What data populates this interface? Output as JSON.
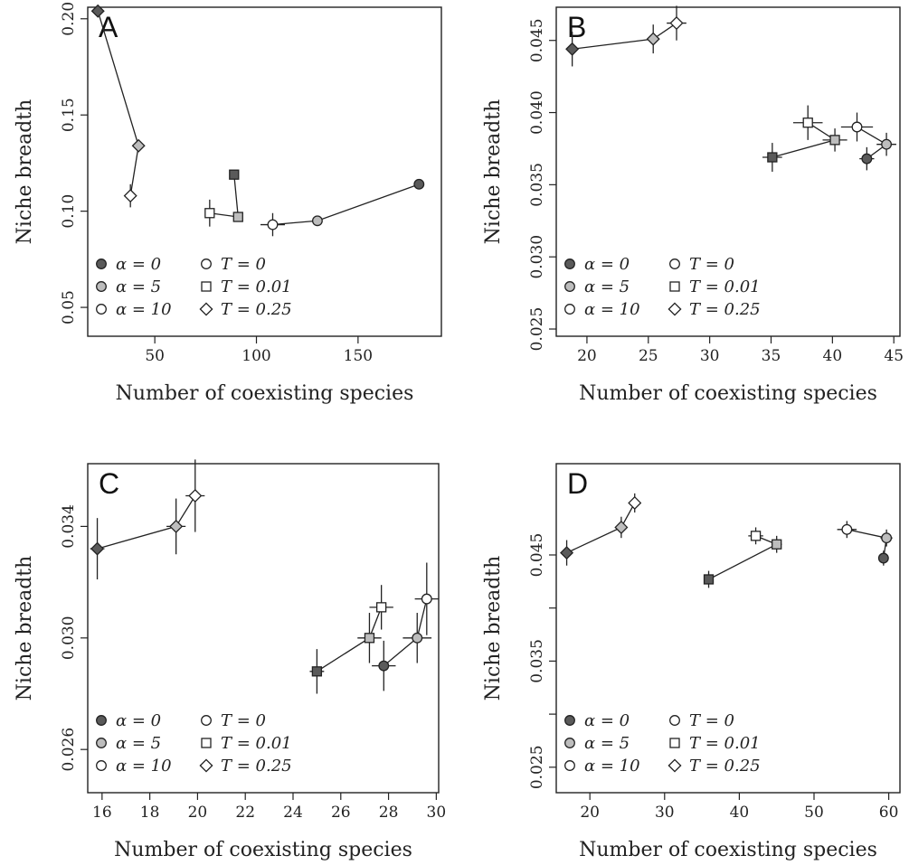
{
  "legend": {
    "fill_items": [
      {
        "label": "α = 0",
        "fill": "#5a5a5a"
      },
      {
        "label": "α = 5",
        "fill": "#bdbdbd"
      },
      {
        "label": "α = 10",
        "fill": "#ffffff"
      }
    ],
    "shape_items": [
      {
        "label": "T = 0",
        "shape": "circle"
      },
      {
        "label": "T = 0.01",
        "shape": "square"
      },
      {
        "label": "T = 0.25",
        "shape": "diamond"
      }
    ]
  },
  "colors": {
    "alpha0": "#5a5a5a",
    "alpha5": "#bdbdbd",
    "alpha10": "#ffffff",
    "stroke": "#222222"
  },
  "chart_data": [
    {
      "panel": "A",
      "type": "scatter",
      "xlabel": "Number of coexisting species",
      "ylabel": "Niche breadth",
      "xlim": [
        17,
        191
      ],
      "ylim": [
        0.035,
        0.206
      ],
      "xticks": [
        50,
        100,
        150
      ],
      "xtick_labels": [
        "50",
        "100",
        "150"
      ],
      "yticks": [
        0.05,
        0.1,
        0.15,
        0.2
      ],
      "ytick_labels": [
        "0.05",
        "0.10",
        "0.15",
        "0.20"
      ],
      "points": [
        {
          "T": "0",
          "alpha": 0,
          "x": 180,
          "y": 0.114,
          "xerr": 0,
          "yerr": 0
        },
        {
          "T": "0",
          "alpha": 5,
          "x": 130,
          "y": 0.095,
          "xerr": 0,
          "yerr": 0
        },
        {
          "T": "0",
          "alpha": 10,
          "x": 108,
          "y": 0.093,
          "xerr": 6,
          "yerr": 0.006
        },
        {
          "T": "0.01",
          "alpha": 0,
          "x": 89,
          "y": 0.119,
          "xerr": 0,
          "yerr": 0
        },
        {
          "T": "0.01",
          "alpha": 5,
          "x": 91,
          "y": 0.097,
          "xerr": 0,
          "yerr": 0
        },
        {
          "T": "0.01",
          "alpha": 10,
          "x": 77,
          "y": 0.099,
          "xerr": 0,
          "yerr": 0.007
        },
        {
          "T": "0.25",
          "alpha": 0,
          "x": 22,
          "y": 0.204,
          "xerr": 0,
          "yerr": 0
        },
        {
          "T": "0.25",
          "alpha": 5,
          "x": 42,
          "y": 0.134,
          "xerr": 0,
          "yerr": 0
        },
        {
          "T": "0.25",
          "alpha": 10,
          "x": 38,
          "y": 0.108,
          "xerr": 0,
          "yerr": 0.006
        }
      ]
    },
    {
      "panel": "B",
      "type": "scatter",
      "xlabel": "Number of coexisting species",
      "ylabel": "Niche breadth",
      "xlim": [
        17.5,
        45.5
      ],
      "ylim": [
        0.0245,
        0.0473
      ],
      "xticks": [
        20,
        25,
        30,
        35,
        40,
        45
      ],
      "xtick_labels": [
        "20",
        "25",
        "30",
        "35",
        "40",
        "45"
      ],
      "yticks": [
        0.025,
        0.03,
        0.035,
        0.04,
        0.045
      ],
      "ytick_labels": [
        "0.025",
        "0.030",
        "0.035",
        "0.040",
        "0.045"
      ],
      "points": [
        {
          "T": "0",
          "alpha": 0,
          "x": 42.8,
          "y": 0.0368,
          "xerr": 0.6,
          "yerr": 0.0008
        },
        {
          "T": "0",
          "alpha": 5,
          "x": 44.4,
          "y": 0.0378,
          "xerr": 0.8,
          "yerr": 0.0008
        },
        {
          "T": "0",
          "alpha": 10,
          "x": 42.0,
          "y": 0.039,
          "xerr": 1.3,
          "yerr": 0.001
        },
        {
          "T": "0.01",
          "alpha": 0,
          "x": 35.1,
          "y": 0.0369,
          "xerr": 0.8,
          "yerr": 0.001
        },
        {
          "T": "0.01",
          "alpha": 5,
          "x": 40.2,
          "y": 0.0381,
          "xerr": 1.0,
          "yerr": 0.0008
        },
        {
          "T": "0.01",
          "alpha": 10,
          "x": 38.0,
          "y": 0.0393,
          "xerr": 1.2,
          "yerr": 0.0012
        },
        {
          "T": "0.25",
          "alpha": 0,
          "x": 18.8,
          "y": 0.0444,
          "xerr": 0,
          "yerr": 0.0012
        },
        {
          "T": "0.25",
          "alpha": 5,
          "x": 25.4,
          "y": 0.0451,
          "xerr": 0.5,
          "yerr": 0.001
        },
        {
          "T": "0.25",
          "alpha": 10,
          "x": 27.3,
          "y": 0.0462,
          "xerr": 0.8,
          "yerr": 0.0012
        }
      ]
    },
    {
      "panel": "C",
      "type": "scatter",
      "xlabel": "Number of coexisting species",
      "ylabel": "Niche breadth",
      "xlim": [
        15.4,
        30.1
      ],
      "ylim": [
        0.02445,
        0.03625
      ],
      "xticks": [
        16,
        18,
        20,
        22,
        24,
        26,
        28,
        30
      ],
      "xtick_labels": [
        "16",
        "18",
        "20",
        "22",
        "24",
        "26",
        "28",
        "30"
      ],
      "yticks": [
        0.026,
        0.03,
        0.034
      ],
      "ytick_labels": [
        "0.026",
        "0.030",
        "0.034"
      ],
      "points": [
        {
          "T": "0",
          "alpha": 0,
          "x": 27.8,
          "y": 0.029,
          "xerr": 0.5,
          "yerr": 0.0009
        },
        {
          "T": "0",
          "alpha": 5,
          "x": 29.2,
          "y": 0.03,
          "xerr": 0.6,
          "yerr": 0.0009
        },
        {
          "T": "0",
          "alpha": 10,
          "x": 29.6,
          "y": 0.0314,
          "xerr": 0.5,
          "yerr": 0.0013
        },
        {
          "T": "0.01",
          "alpha": 0,
          "x": 25.0,
          "y": 0.0288,
          "xerr": 0.3,
          "yerr": 0.0008
        },
        {
          "T": "0.01",
          "alpha": 5,
          "x": 27.2,
          "y": 0.03,
          "xerr": 0.5,
          "yerr": 0.0009
        },
        {
          "T": "0.01",
          "alpha": 10,
          "x": 27.7,
          "y": 0.0311,
          "xerr": 0.5,
          "yerr": 0.0008
        },
        {
          "T": "0.25",
          "alpha": 0,
          "x": 15.8,
          "y": 0.0332,
          "xerr": 0.3,
          "yerr": 0.0011
        },
        {
          "T": "0.25",
          "alpha": 5,
          "x": 19.1,
          "y": 0.034,
          "xerr": 0.4,
          "yerr": 0.001
        },
        {
          "T": "0.25",
          "alpha": 10,
          "x": 19.9,
          "y": 0.0351,
          "xerr": 0.4,
          "yerr": 0.0013
        }
      ]
    },
    {
      "panel": "D",
      "type": "scatter",
      "xlabel": "Number of coexisting species",
      "ylabel": "Niche breadth",
      "xlim": [
        15.5,
        61.5
      ],
      "ylim": [
        0.0226,
        0.0536
      ],
      "xticks": [
        20,
        30,
        40,
        50,
        60
      ],
      "xtick_labels": [
        "20",
        "30",
        "40",
        "50",
        "60"
      ],
      "yticks": [
        0.025,
        0.03,
        0.035,
        0.04,
        0.045
      ],
      "ytick_labels": [
        "0.025",
        "",
        "0.035",
        "",
        "0.045"
      ],
      "points": [
        {
          "T": "0",
          "alpha": 0,
          "x": 59.3,
          "y": 0.0447,
          "xerr": 0,
          "yerr": 0.0007
        },
        {
          "T": "0",
          "alpha": 5,
          "x": 59.7,
          "y": 0.0466,
          "xerr": 0.8,
          "yerr": 0.0008
        },
        {
          "T": "0",
          "alpha": 10,
          "x": 54.4,
          "y": 0.0474,
          "xerr": 1.3,
          "yerr": 0.0008
        },
        {
          "T": "0.01",
          "alpha": 0,
          "x": 35.9,
          "y": 0.0427,
          "xerr": 0.5,
          "yerr": 0.0008
        },
        {
          "T": "0.01",
          "alpha": 5,
          "x": 45.0,
          "y": 0.046,
          "xerr": 0.7,
          "yerr": 0.0008
        },
        {
          "T": "0.01",
          "alpha": 10,
          "x": 42.2,
          "y": 0.0468,
          "xerr": 1.0,
          "yerr": 0.0008
        },
        {
          "T": "0.25",
          "alpha": 0,
          "x": 16.9,
          "y": 0.0452,
          "xerr": 0,
          "yerr": 0.0012
        },
        {
          "T": "0.25",
          "alpha": 5,
          "x": 24.2,
          "y": 0.0476,
          "xerr": 0,
          "yerr": 0.001
        },
        {
          "T": "0.25",
          "alpha": 10,
          "x": 26.0,
          "y": 0.0499,
          "xerr": 0,
          "yerr": 0.0009
        }
      ]
    }
  ]
}
